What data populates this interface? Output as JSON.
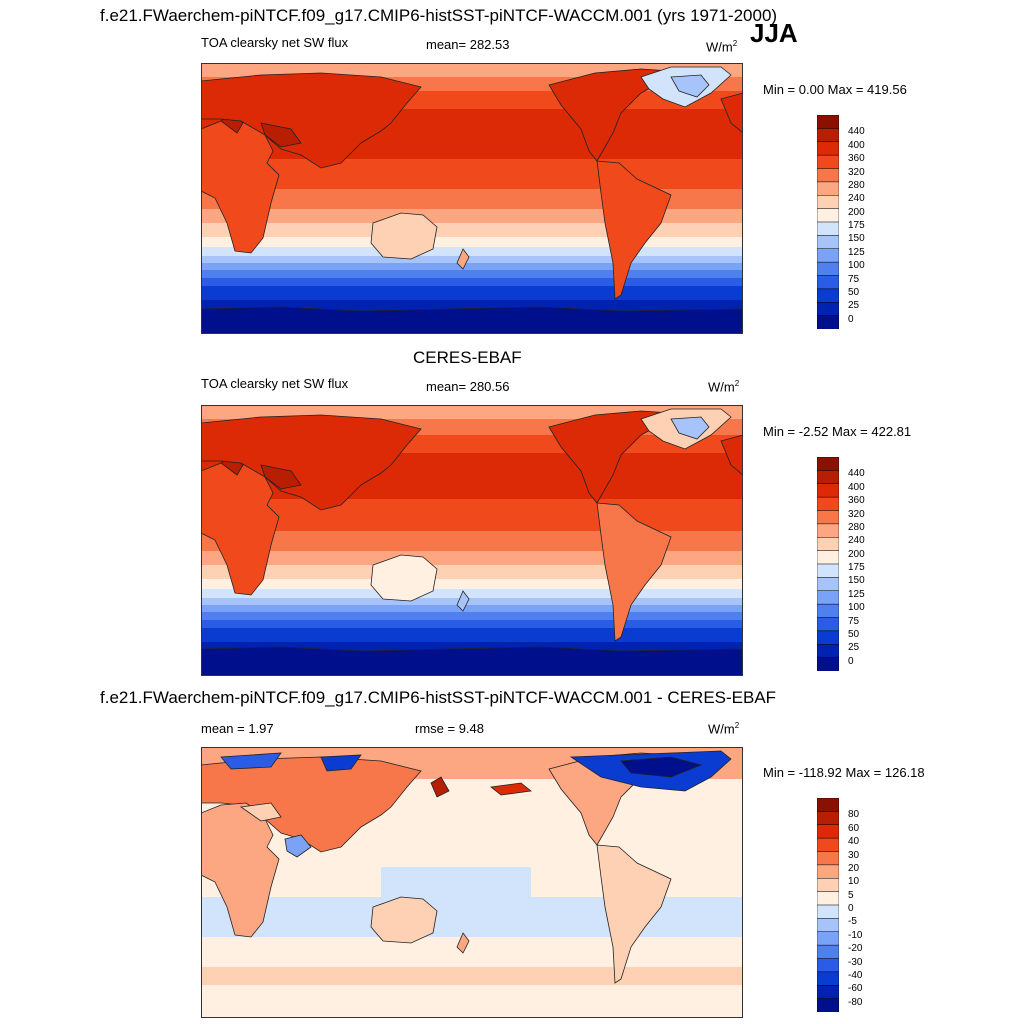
{
  "season": "JJA",
  "panels": [
    {
      "title": "f.e21.FWaerchem-piNTCF.f09_g17.CMIP6-histSST-piNTCF-WACCM.001 (yrs 1971-2000)",
      "variable": "TOA clearsky net SW flux",
      "stat1": "mean= 282.53",
      "stat2": "",
      "units": "W/m",
      "units_exp": "2",
      "minmax": "Min =   0.00 Max = 419.56",
      "levels": [
        "0",
        "25",
        "50",
        "75",
        "100",
        "125",
        "150",
        "175",
        "200",
        "240",
        "280",
        "320",
        "360",
        "400",
        "440"
      ],
      "colors": [
        "#00108c",
        "#0022b0",
        "#0a3cd2",
        "#2a5ce6",
        "#5080f0",
        "#7aa2f6",
        "#a6c4fa",
        "#d2e4fc",
        "#fff0e2",
        "#fed0b4",
        "#fca682",
        "#f8774a",
        "#f04a1c",
        "#dc2a06",
        "#b81e02",
        "#8a1000"
      ]
    },
    {
      "title": "CERES-EBAF",
      "variable": "TOA clearsky net SW flux",
      "stat1": "mean= 280.56",
      "stat2": "",
      "units": "W/m",
      "units_exp": "2",
      "minmax": "Min =  -2.52 Max = 422.81",
      "levels": [
        "0",
        "25",
        "50",
        "75",
        "100",
        "125",
        "150",
        "175",
        "200",
        "240",
        "280",
        "320",
        "360",
        "400",
        "440"
      ],
      "colors": [
        "#00108c",
        "#0022b0",
        "#0a3cd2",
        "#2a5ce6",
        "#5080f0",
        "#7aa2f6",
        "#a6c4fa",
        "#d2e4fc",
        "#fff0e2",
        "#fed0b4",
        "#fca682",
        "#f8774a",
        "#f04a1c",
        "#dc2a06",
        "#b81e02",
        "#8a1000"
      ]
    },
    {
      "title": "f.e21.FWaerchem-piNTCF.f09_g17.CMIP6-histSST-piNTCF-WACCM.001 - CERES-EBAF",
      "variable": "",
      "stat1": "mean =   1.97",
      "stat2": "rmse =   9.48",
      "units": "W/m",
      "units_exp": "2",
      "minmax": "Min = -118.92 Max = 126.18",
      "levels": [
        "-80",
        "-60",
        "-40",
        "-30",
        "-20",
        "-10",
        "-5",
        "0",
        "5",
        "10",
        "20",
        "30",
        "40",
        "60",
        "80"
      ],
      "colors": [
        "#00108c",
        "#0022b0",
        "#0a3cd2",
        "#2a5ce6",
        "#5080f0",
        "#7aa2f6",
        "#a6c4fa",
        "#d2e4fc",
        "#fff0e2",
        "#fed0b4",
        "#fca682",
        "#f8774a",
        "#f04a1c",
        "#dc2a06",
        "#b81e02",
        "#8a1000"
      ]
    }
  ]
}
